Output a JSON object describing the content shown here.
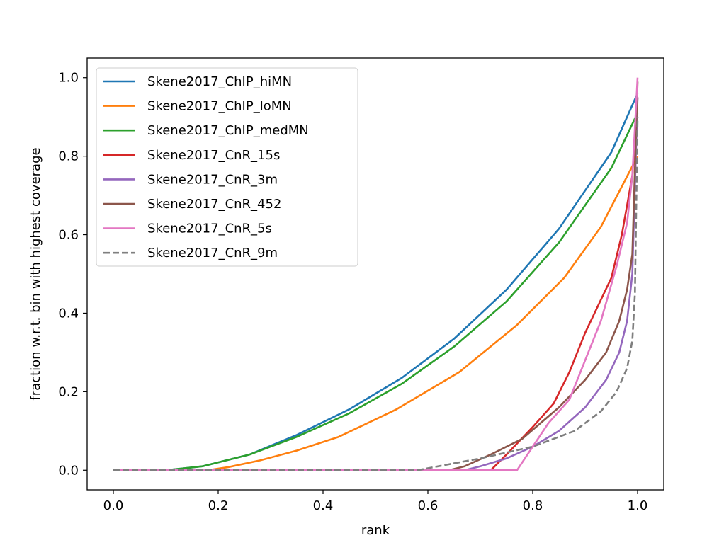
{
  "chart_data": {
    "type": "line",
    "xlabel": "rank",
    "ylabel": "fraction w.r.t. bin with highest coverage",
    "xlim": [
      -0.05,
      1.05
    ],
    "ylim": [
      -0.05,
      1.05
    ],
    "xticks": [
      0.0,
      0.2,
      0.4,
      0.6,
      0.8,
      1.0
    ],
    "xtick_labels": [
      "0.0",
      "0.2",
      "0.4",
      "0.6",
      "0.8",
      "1.0"
    ],
    "yticks": [
      0.0,
      0.2,
      0.4,
      0.6,
      0.8,
      1.0
    ],
    "ytick_labels": [
      "0.0",
      "0.2",
      "0.4",
      "0.6",
      "0.8",
      "1.0"
    ],
    "grid": false,
    "legend_position": "top-left",
    "series": [
      {
        "name": "Skene2017_ChIP_hiMN",
        "color": "#1f77b4",
        "dash": "solid",
        "x": [
          0.0,
          0.1,
          0.17,
          0.26,
          0.35,
          0.45,
          0.55,
          0.65,
          0.75,
          0.85,
          0.95,
          1.0
        ],
        "y": [
          0.0,
          0.0,
          0.01,
          0.04,
          0.09,
          0.155,
          0.235,
          0.335,
          0.46,
          0.615,
          0.81,
          0.96
        ]
      },
      {
        "name": "Skene2017_ChIP_loMN",
        "color": "#ff7f0e",
        "dash": "solid",
        "x": [
          0.0,
          0.18,
          0.22,
          0.28,
          0.35,
          0.43,
          0.54,
          0.66,
          0.77,
          0.86,
          0.93,
          1.0
        ],
        "y": [
          0.0,
          0.0,
          0.008,
          0.025,
          0.05,
          0.085,
          0.155,
          0.25,
          0.37,
          0.49,
          0.62,
          0.8
        ]
      },
      {
        "name": "Skene2017_ChIP_medMN",
        "color": "#2ca02c",
        "dash": "solid",
        "x": [
          0.0,
          0.1,
          0.17,
          0.26,
          0.35,
          0.45,
          0.55,
          0.65,
          0.75,
          0.85,
          0.95,
          1.0
        ],
        "y": [
          0.0,
          0.0,
          0.01,
          0.04,
          0.085,
          0.145,
          0.22,
          0.315,
          0.43,
          0.58,
          0.77,
          0.91
        ]
      },
      {
        "name": "Skene2017_CnR_15s",
        "color": "#d62728",
        "dash": "solid",
        "x": [
          0.0,
          0.72,
          0.75,
          0.8,
          0.84,
          0.87,
          0.9,
          0.95,
          0.97,
          0.99,
          1.0
        ],
        "y": [
          0.0,
          0.0,
          0.04,
          0.11,
          0.17,
          0.25,
          0.35,
          0.49,
          0.6,
          0.75,
          0.95
        ]
      },
      {
        "name": "Skene2017_CnR_3m",
        "color": "#9467bd",
        "dash": "solid",
        "x": [
          0.0,
          0.67,
          0.7,
          0.75,
          0.8,
          0.85,
          0.9,
          0.94,
          0.965,
          0.98,
          0.99,
          1.0
        ],
        "y": [
          0.0,
          0.0,
          0.01,
          0.03,
          0.06,
          0.1,
          0.16,
          0.23,
          0.3,
          0.38,
          0.5,
          0.95
        ]
      },
      {
        "name": "Skene2017_CnR_452",
        "color": "#8c564b",
        "dash": "solid",
        "x": [
          0.0,
          0.64,
          0.67,
          0.72,
          0.78,
          0.85,
          0.9,
          0.94,
          0.965,
          0.98,
          0.99,
          1.0
        ],
        "y": [
          0.0,
          0.0,
          0.01,
          0.04,
          0.08,
          0.16,
          0.23,
          0.3,
          0.38,
          0.46,
          0.55,
          0.99
        ]
      },
      {
        "name": "Skene2017_CnR_5s",
        "color": "#e377c2",
        "dash": "solid",
        "x": [
          0.0,
          0.77,
          0.8,
          0.83,
          0.87,
          0.9,
          0.93,
          0.96,
          0.98,
          0.99,
          1.0
        ],
        "y": [
          0.0,
          0.0,
          0.06,
          0.12,
          0.18,
          0.28,
          0.38,
          0.52,
          0.63,
          0.75,
          1.0
        ]
      },
      {
        "name": "Skene2017_CnR_9m",
        "color": "#7f7f7f",
        "dash": "dashed",
        "x": [
          0.0,
          0.58,
          0.62,
          0.7,
          0.8,
          0.88,
          0.93,
          0.96,
          0.98,
          0.99,
          0.995,
          1.0
        ],
        "y": [
          0.0,
          0.0,
          0.01,
          0.03,
          0.06,
          0.1,
          0.15,
          0.2,
          0.26,
          0.33,
          0.45,
          0.9
        ]
      }
    ]
  }
}
